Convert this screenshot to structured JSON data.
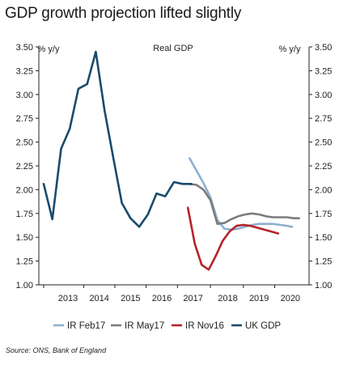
{
  "title": "GDP growth projection lifted slightly",
  "source": "Source: ONS, Bank of England",
  "chart_data": {
    "type": "line",
    "title": "Real GDP",
    "ylabel_left": "% y/y",
    "ylabel_right": "% y/y",
    "ylim": [
      1.0,
      3.5
    ],
    "yticks": [
      "1.00",
      "1.25",
      "1.50",
      "1.75",
      "2.00",
      "2.25",
      "2.50",
      "2.75",
      "3.00",
      "3.25",
      "3.50"
    ],
    "ytick_values": [
      1.0,
      1.25,
      1.5,
      1.75,
      2.0,
      2.25,
      2.5,
      2.75,
      3.0,
      3.25,
      3.5
    ],
    "xlim": [
      2012.7,
      2020.2
    ],
    "xticks": [
      "2013",
      "2014",
      "2015",
      "2016",
      "2017",
      "2018",
      "2019",
      "2020"
    ],
    "xtick_values": [
      2013.4,
      2014.3,
      2015.2,
      2016.1,
      2017.0,
      2018.0,
      2018.9,
      2019.8
    ],
    "grid": false,
    "legend_position": "bottom",
    "series": [
      {
        "name": "IR Feb17",
        "color": "#8fafd1",
        "x": [
          2016.9,
          2017.1,
          2017.3,
          2017.5,
          2017.7,
          2017.9,
          2018.1,
          2018.3,
          2018.5,
          2018.7,
          2018.9,
          2019.1,
          2019.3,
          2019.5,
          2019.7,
          2019.85
        ],
        "values": [
          2.33,
          2.2,
          2.07,
          1.92,
          1.68,
          1.59,
          1.58,
          1.59,
          1.61,
          1.63,
          1.64,
          1.64,
          1.64,
          1.63,
          1.62,
          1.61
        ]
      },
      {
        "name": "IR May17",
        "color": "#7c7c7c",
        "x": [
          2016.9,
          2017.1,
          2017.3,
          2017.5,
          2017.7,
          2017.9,
          2018.1,
          2018.3,
          2018.5,
          2018.7,
          2018.9,
          2019.1,
          2019.3,
          2019.5,
          2019.7,
          2019.9,
          2020.05
        ],
        "values": [
          2.06,
          2.05,
          2.0,
          1.89,
          1.64,
          1.65,
          1.69,
          1.72,
          1.74,
          1.75,
          1.74,
          1.72,
          1.71,
          1.71,
          1.71,
          1.7,
          1.7
        ]
      },
      {
        "name": "IR Nov16",
        "color": "#b5232b",
        "x": [
          2016.85,
          2017.05,
          2017.25,
          2017.45,
          2017.65,
          2017.85,
          2018.05,
          2018.25,
          2018.45,
          2018.65,
          2018.85,
          2019.05,
          2019.25,
          2019.45
        ],
        "values": [
          1.81,
          1.43,
          1.21,
          1.16,
          1.3,
          1.46,
          1.56,
          1.62,
          1.63,
          1.62,
          1.6,
          1.58,
          1.56,
          1.54
        ]
      },
      {
        "name": "UK GDP",
        "color": "#1a4b6b",
        "x": [
          2012.7,
          2012.95,
          2013.2,
          2013.45,
          2013.7,
          2013.95,
          2014.2,
          2014.45,
          2014.7,
          2014.95,
          2015.2,
          2015.45,
          2015.7,
          2015.95,
          2016.2,
          2016.45,
          2016.7,
          2016.95
        ],
        "values": [
          2.06,
          1.69,
          2.43,
          2.64,
          3.06,
          3.11,
          3.45,
          2.84,
          2.34,
          1.86,
          1.7,
          1.61,
          1.74,
          1.96,
          1.93,
          2.08,
          2.06,
          2.06
        ]
      }
    ]
  }
}
